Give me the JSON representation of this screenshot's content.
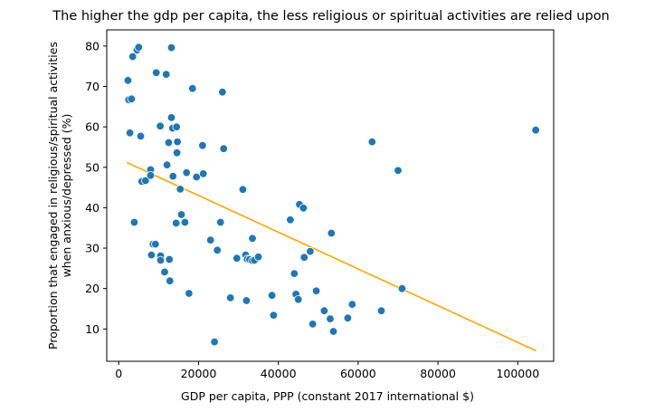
{
  "chart_data": {
    "type": "scatter",
    "title": "The higher the gdp per capita, the less religious or spiritual activities are relied upon",
    "xlabel": "GDP per capita, PPP (constant 2017 international $)",
    "ylabel_lines": [
      "Proportion that engaged in religious/spiritual activities",
      "when anxious/depressed (%)"
    ],
    "xlim": [
      -3000,
      109000
    ],
    "ylim": [
      2,
      84
    ],
    "xticks": [
      0,
      20000,
      40000,
      60000,
      80000,
      100000
    ],
    "yticks": [
      10,
      20,
      30,
      40,
      50,
      60,
      70,
      80
    ],
    "grid": false,
    "colors": {
      "points": "#1f77b4",
      "trend": "#ffa500",
      "point_edge": "#ffffff"
    },
    "points": [
      [
        2300,
        71.5
      ],
      [
        2500,
        66.7
      ],
      [
        3200,
        66.9
      ],
      [
        3500,
        77.4
      ],
      [
        4600,
        79.0
      ],
      [
        5000,
        79.7
      ],
      [
        2800,
        58.5
      ],
      [
        5500,
        57.7
      ],
      [
        3900,
        36.4
      ],
      [
        5800,
        46.5
      ],
      [
        6700,
        46.7
      ],
      [
        8000,
        49.4
      ],
      [
        8000,
        48.0
      ],
      [
        8200,
        28.3
      ],
      [
        8600,
        31.0
      ],
      [
        9200,
        31.0
      ],
      [
        9400,
        73.4
      ],
      [
        10400,
        60.2
      ],
      [
        10500,
        28.1
      ],
      [
        10500,
        27.0
      ],
      [
        11500,
        24.1
      ],
      [
        11900,
        73.0
      ],
      [
        12100,
        50.6
      ],
      [
        12500,
        56.1
      ],
      [
        12700,
        27.2
      ],
      [
        12800,
        21.9
      ],
      [
        13200,
        79.6
      ],
      [
        13200,
        62.3
      ],
      [
        13500,
        59.7
      ],
      [
        13600,
        47.8
      ],
      [
        14400,
        36.2
      ],
      [
        14500,
        60.0
      ],
      [
        14600,
        53.6
      ],
      [
        14700,
        56.3
      ],
      [
        15400,
        44.6
      ],
      [
        15700,
        38.3
      ],
      [
        16600,
        36.4
      ],
      [
        17000,
        48.7
      ],
      [
        17600,
        18.8
      ],
      [
        18500,
        69.5
      ],
      [
        19500,
        47.6
      ],
      [
        21000,
        55.4
      ],
      [
        21200,
        48.4
      ],
      [
        23000,
        32.0
      ],
      [
        24000,
        6.8
      ],
      [
        24700,
        29.5
      ],
      [
        25500,
        36.4
      ],
      [
        26000,
        68.6
      ],
      [
        26300,
        54.6
      ],
      [
        28000,
        17.7
      ],
      [
        29600,
        27.5
      ],
      [
        31100,
        44.5
      ],
      [
        31800,
        28.3
      ],
      [
        32000,
        17.0
      ],
      [
        32200,
        27.3
      ],
      [
        32800,
        27.2
      ],
      [
        33500,
        26.9
      ],
      [
        33500,
        32.4
      ],
      [
        34000,
        27.0
      ],
      [
        35000,
        27.8
      ],
      [
        38400,
        18.3
      ],
      [
        38800,
        13.4
      ],
      [
        43000,
        37.0
      ],
      [
        44000,
        23.7
      ],
      [
        44400,
        18.6
      ],
      [
        45000,
        17.3
      ],
      [
        45300,
        40.8
      ],
      [
        46300,
        39.9
      ],
      [
        46500,
        27.7
      ],
      [
        48000,
        29.2
      ],
      [
        48600,
        11.2
      ],
      [
        49500,
        19.4
      ],
      [
        51500,
        14.5
      ],
      [
        53000,
        12.5
      ],
      [
        53300,
        33.7
      ],
      [
        53800,
        9.4
      ],
      [
        57400,
        12.7
      ],
      [
        58500,
        16.1
      ],
      [
        63500,
        56.3
      ],
      [
        65800,
        14.5
      ],
      [
        70000,
        49.2
      ],
      [
        71000,
        20.0
      ],
      [
        104500,
        59.2
      ]
    ],
    "trend_line": {
      "x": [
        2000,
        104600
      ],
      "y": [
        51.2,
        4.6
      ]
    }
  }
}
